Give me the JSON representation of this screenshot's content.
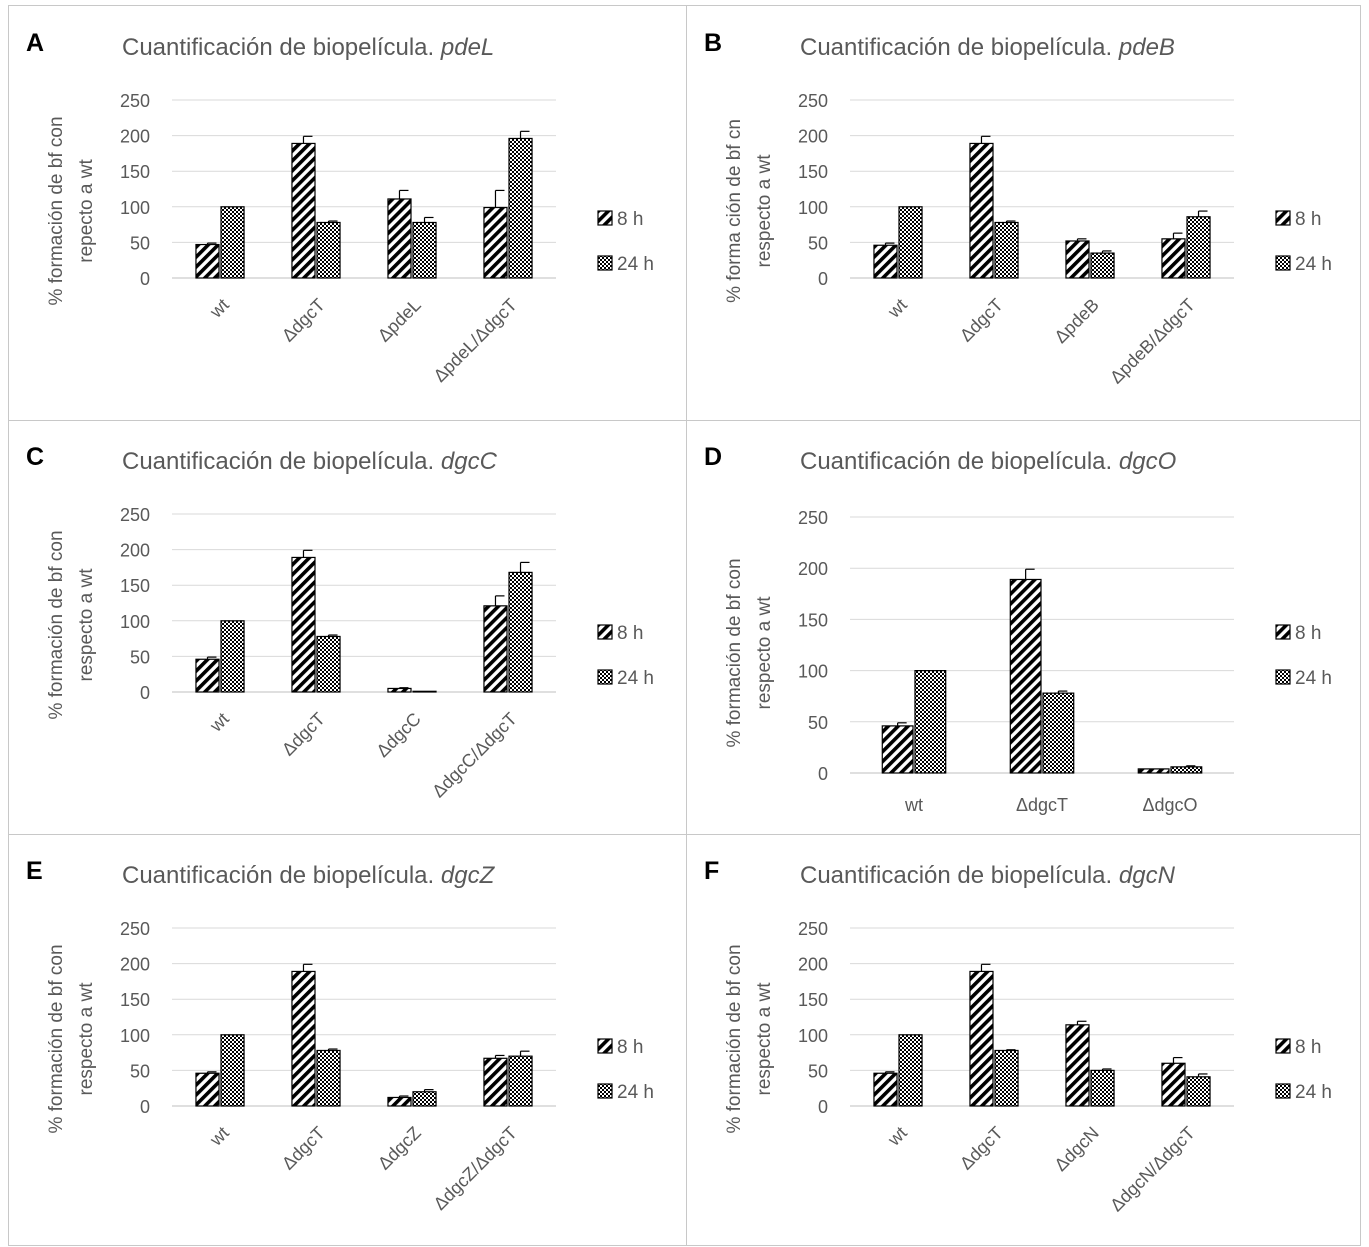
{
  "chart_data": [
    {
      "panel": "A",
      "type": "bar",
      "title": "Cuantificación de biopelícula. ",
      "title_italic": "pdeL",
      "ylabel_lines": [
        "% formación de bf con",
        "repecto a wt"
      ],
      "categories": [
        "wt",
        "ΔdgcT",
        "ΔpdeL",
        "ΔpdeL/ΔdgcT"
      ],
      "ylim": [
        0,
        250
      ],
      "yticks": [
        0,
        50,
        100,
        150,
        200,
        250
      ],
      "series": [
        {
          "name": "8 h",
          "pattern": "hatch",
          "values": [
            47,
            189,
            111,
            99
          ],
          "errors": [
            2,
            10,
            12,
            24
          ]
        },
        {
          "name": "24 h",
          "pattern": "check",
          "values": [
            100,
            78,
            78,
            196
          ],
          "errors": [
            0,
            2,
            7,
            10
          ]
        }
      ]
    },
    {
      "panel": "B",
      "type": "bar",
      "title": "Cuantificación de biopelícula. ",
      "title_italic": "pdeB",
      "ylabel_lines": [
        "% forma ción de bf cn",
        "respecto a wt"
      ],
      "categories": [
        "wt",
        "ΔdgcT",
        "ΔpdeB",
        "ΔpdeB/ΔdgcT"
      ],
      "ylim": [
        0,
        250
      ],
      "yticks": [
        0,
        50,
        100,
        150,
        200,
        250
      ],
      "series": [
        {
          "name": "8 h",
          "pattern": "hatch",
          "values": [
            46,
            189,
            52,
            55
          ],
          "errors": [
            3,
            10,
            3,
            8
          ]
        },
        {
          "name": "24 h",
          "pattern": "check",
          "values": [
            100,
            78,
            35,
            86
          ],
          "errors": [
            0,
            2,
            3,
            8
          ]
        }
      ]
    },
    {
      "panel": "C",
      "type": "bar",
      "title": "Cuantificación de biopelícula. ",
      "title_italic": "dgcC",
      "ylabel_lines": [
        "% formación de bf con",
        "respecto a wt"
      ],
      "categories": [
        "wt",
        "ΔdgcT",
        "ΔdgcC",
        "ΔdgcC/ΔdgcT"
      ],
      "ylim": [
        0,
        250
      ],
      "yticks": [
        0,
        50,
        100,
        150,
        200,
        250
      ],
      "series": [
        {
          "name": "8 h",
          "pattern": "hatch",
          "values": [
            46,
            189,
            5,
            121
          ],
          "errors": [
            3,
            10,
            1,
            14
          ]
        },
        {
          "name": "24 h",
          "pattern": "check",
          "values": [
            100,
            78,
            1,
            168
          ],
          "errors": [
            0,
            2,
            0,
            14
          ]
        }
      ]
    },
    {
      "panel": "D",
      "type": "bar",
      "title": "Cuantificación de biopelícula. ",
      "title_italic": "dgcO",
      "ylabel_lines": [
        "% formación de bf con",
        "respecto a wt"
      ],
      "categories": [
        "wt",
        "ΔdgcT",
        "ΔdgcO"
      ],
      "ylim": [
        0,
        250
      ],
      "yticks": [
        0,
        50,
        100,
        150,
        200,
        250
      ],
      "series": [
        {
          "name": "8 h",
          "pattern": "hatch",
          "values": [
            46,
            189,
            4
          ],
          "errors": [
            3,
            10,
            0
          ]
        },
        {
          "name": "24 h",
          "pattern": "check",
          "values": [
            100,
            78,
            6
          ],
          "errors": [
            0,
            2,
            1
          ]
        }
      ]
    },
    {
      "panel": "E",
      "type": "bar",
      "title": "Cuantificación de biopelícula. ",
      "title_italic": "dgcZ",
      "ylabel_lines": [
        "% formación de bf con",
        "respecto a wt"
      ],
      "categories": [
        "wt",
        "ΔdgcT",
        "ΔdgcZ",
        "ΔdgcZ/ΔdgcT"
      ],
      "ylim": [
        0,
        250
      ],
      "yticks": [
        0,
        50,
        100,
        150,
        200,
        250
      ],
      "series": [
        {
          "name": "8 h",
          "pattern": "hatch",
          "values": [
            46,
            189,
            12,
            67
          ],
          "errors": [
            2,
            10,
            2,
            4
          ]
        },
        {
          "name": "24 h",
          "pattern": "check",
          "values": [
            100,
            78,
            20,
            70
          ],
          "errors": [
            0,
            2,
            3,
            7
          ]
        }
      ]
    },
    {
      "panel": "F",
      "type": "bar",
      "title": "Cuantificación de biopelícula. ",
      "title_italic": "dgcN",
      "ylabel_lines": [
        "% formación de bf con",
        "respecto a wt"
      ],
      "categories": [
        "wt",
        "ΔdgcT",
        "ΔdgcN",
        "ΔdgcN/ΔdgcT"
      ],
      "ylim": [
        0,
        250
      ],
      "yticks": [
        0,
        50,
        100,
        150,
        200,
        250
      ],
      "series": [
        {
          "name": "8 h",
          "pattern": "hatch",
          "values": [
            46,
            189,
            114,
            60
          ],
          "errors": [
            2,
            10,
            5,
            8
          ]
        },
        {
          "name": "24 h",
          "pattern": "check",
          "values": [
            100,
            78,
            50,
            41
          ],
          "errors": [
            0,
            1,
            2,
            4
          ]
        }
      ]
    }
  ]
}
